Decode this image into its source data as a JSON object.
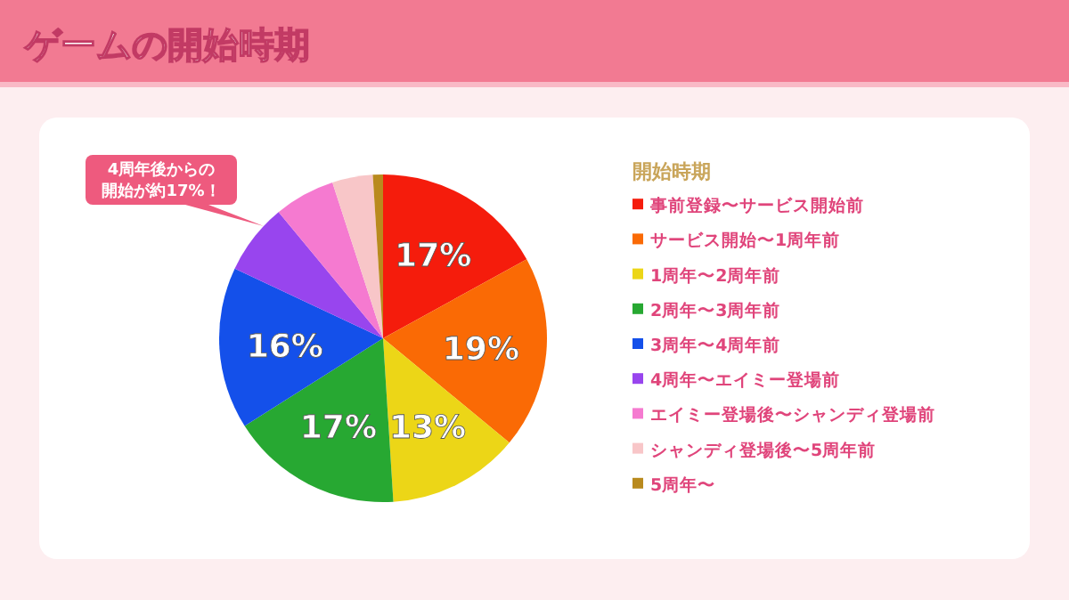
{
  "chart_data": {
    "type": "pie",
    "title": "ゲームの開始時期",
    "legend_title": "開始時期",
    "legend": "right",
    "categories": [
      "事前登録〜サービス開始前",
      "サービス開始〜1周年前",
      "1周年〜2周年前",
      "2周年〜3周年前",
      "3周年〜4周年前",
      "4周年〜エイミー登場前",
      "エイミー登場後〜シャンディ登場前",
      "シャンディ登場後〜5周年前",
      "5周年〜"
    ],
    "values": [
      17,
      19,
      13,
      17,
      16,
      7,
      6,
      4,
      1
    ],
    "colors": [
      "#f51c0c",
      "#fa6a05",
      "#ecd617",
      "#27a832",
      "#1450ea",
      "#9845ee",
      "#f57ad0",
      "#f8c6c8",
      "#b98a1e"
    ],
    "value_labels": [
      "17%",
      "19%",
      "13%",
      "17%",
      "16%",
      null,
      null,
      null,
      null
    ],
    "annotations": [
      "4周年後からの開始が約17%！"
    ]
  }
}
